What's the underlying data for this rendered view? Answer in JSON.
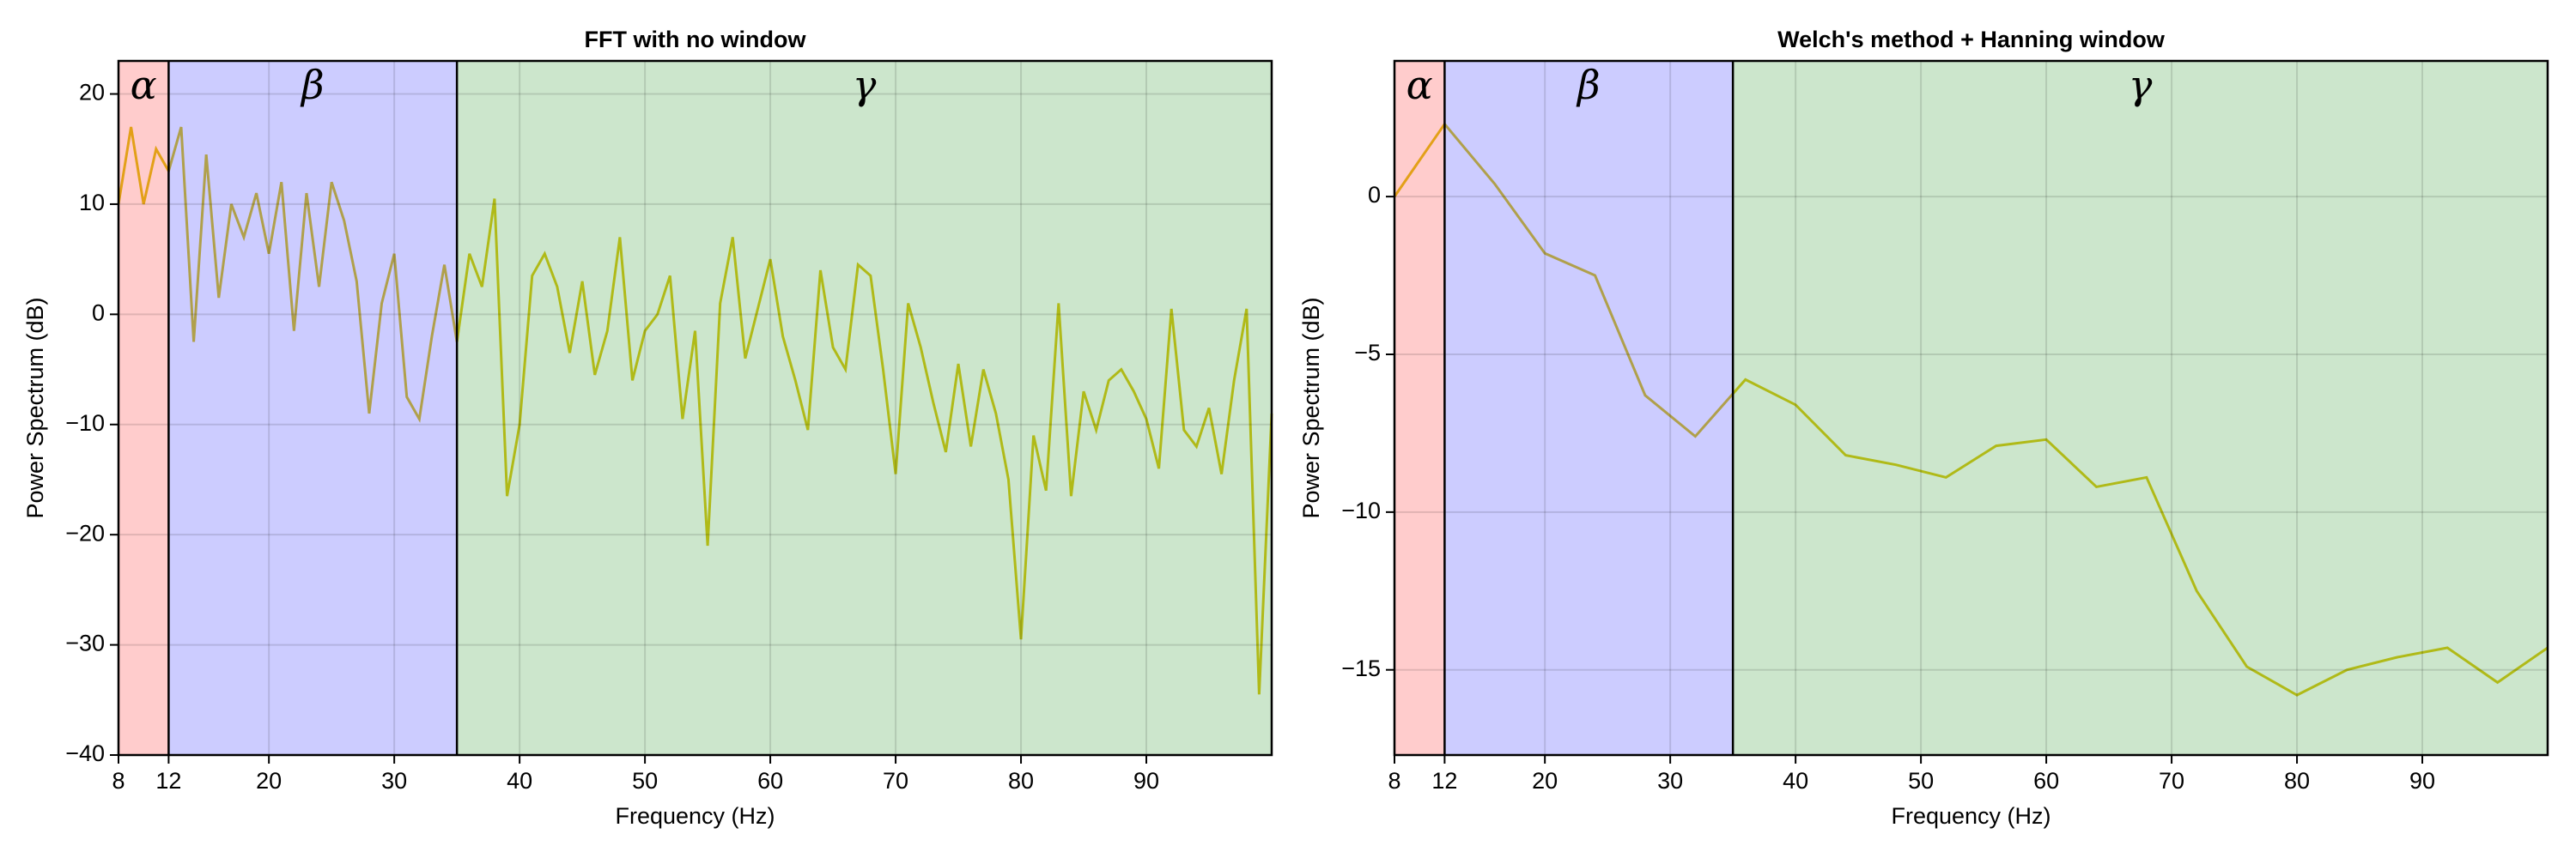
{
  "chart_data": [
    {
      "type": "line",
      "title": "FFT with no window",
      "xlabel": "Frequency (Hz)",
      "ylabel": "Power Spectrum (dB)",
      "color": "#dcc81e",
      "grid": true,
      "xlim": [
        8,
        100
      ],
      "ylim": [
        -40,
        23
      ],
      "xticks": [
        8,
        12,
        20,
        30,
        40,
        50,
        60,
        70,
        80,
        90
      ],
      "yticks": [
        {
          "value": -40,
          "label": "−40"
        },
        {
          "value": -30,
          "label": "−30"
        },
        {
          "value": -20,
          "label": "−20"
        },
        {
          "value": -10,
          "label": "−10"
        },
        0,
        10,
        20
      ],
      "bands": [
        {
          "label": "α",
          "range": [
            8,
            12
          ],
          "color": "rgba(255,0,0,0.2)"
        },
        {
          "label": "β",
          "range": [
            12,
            35
          ],
          "color": "rgba(0,0,255,0.2)"
        },
        {
          "label": "γ",
          "range": [
            35,
            100
          ],
          "color": "rgba(0,128,0,0.2)"
        }
      ],
      "x": [
        8,
        9,
        10,
        11,
        12,
        13,
        14,
        15,
        16,
        17,
        18,
        19,
        20,
        21,
        22,
        23,
        24,
        25,
        26,
        27,
        28,
        29,
        30,
        31,
        32,
        33,
        34,
        35,
        36,
        37,
        38,
        39,
        40,
        41,
        42,
        43,
        44,
        45,
        46,
        47,
        48,
        49,
        50,
        51,
        52,
        53,
        54,
        55,
        56,
        57,
        58,
        59,
        60,
        61,
        62,
        63,
        64,
        65,
        66,
        67,
        68,
        69,
        70,
        71,
        72,
        73,
        74,
        75,
        76,
        77,
        78,
        79,
        80,
        81,
        82,
        83,
        84,
        85,
        86,
        87,
        88,
        89,
        90,
        91,
        92,
        93,
        94,
        95,
        96,
        97,
        98,
        99,
        100
      ],
      "values": [
        10,
        17,
        10,
        15,
        13,
        17,
        -2.5,
        14.5,
        1.5,
        10,
        7,
        11,
        5.5,
        12,
        -1.5,
        11,
        2.5,
        12,
        8.5,
        3,
        -9,
        1,
        5.5,
        -7.5,
        -9.5,
        -2,
        4.5,
        -2.5,
        5.5,
        2.5,
        10.5,
        -16.5,
        -10,
        3.5,
        5.5,
        2.5,
        -3.5,
        3,
        -5.5,
        -1.5,
        7,
        -6,
        -1.5,
        0,
        3.5,
        -9.5,
        -1.5,
        -21,
        1,
        7,
        -4,
        0.5,
        5,
        -2,
        -6,
        -10.5,
        4,
        -3,
        -5,
        4.5,
        3.5,
        -5,
        -14.5,
        1,
        -3,
        -8,
        -12.5,
        -4.5,
        -12,
        -5,
        -9,
        -15,
        -29.5,
        -11,
        -16,
        1,
        -16.5,
        -7,
        -10.5,
        -6,
        -5,
        -7,
        -9.5,
        -14,
        0.5,
        -10.5,
        -12,
        -8.5,
        -14.5,
        -6,
        0.5,
        -34.5,
        -9
      ]
    },
    {
      "type": "line",
      "title": "Welch's method + Hanning window",
      "xlabel": "Frequency (Hz)",
      "ylabel": "Power Spectrum (dB)",
      "color": "#dcc81e",
      "grid": true,
      "xlim": [
        8,
        100
      ],
      "ylim": [
        -17.7,
        4.3
      ],
      "xticks": [
        8,
        12,
        20,
        30,
        40,
        50,
        60,
        70,
        80,
        90
      ],
      "yticks": [
        {
          "value": -15,
          "label": "−15"
        },
        {
          "value": -10,
          "label": "−10"
        },
        {
          "value": -5,
          "label": "−5"
        },
        0
      ],
      "bands": [
        {
          "label": "α",
          "range": [
            8,
            12
          ],
          "color": "rgba(255,0,0,0.2)"
        },
        {
          "label": "β",
          "range": [
            12,
            35
          ],
          "color": "rgba(0,0,255,0.2)"
        },
        {
          "label": "γ",
          "range": [
            35,
            100
          ],
          "color": "rgba(0,128,0,0.2)"
        }
      ],
      "x": [
        8,
        12,
        16,
        20,
        24,
        28,
        32,
        36,
        40,
        44,
        48,
        52,
        56,
        60,
        64,
        68,
        72,
        76,
        80,
        84,
        88,
        92,
        96,
        100
      ],
      "values": [
        0,
        2.3,
        0.4,
        -1.8,
        -2.5,
        -6.3,
        -7.6,
        -5.8,
        -6.6,
        -8.2,
        -8.5,
        -8.9,
        -7.9,
        -7.7,
        -9.2,
        -8.9,
        -12.5,
        -14.9,
        -15.8,
        -15.0,
        -14.6,
        -14.3,
        -15.4,
        -14.3
      ]
    }
  ]
}
